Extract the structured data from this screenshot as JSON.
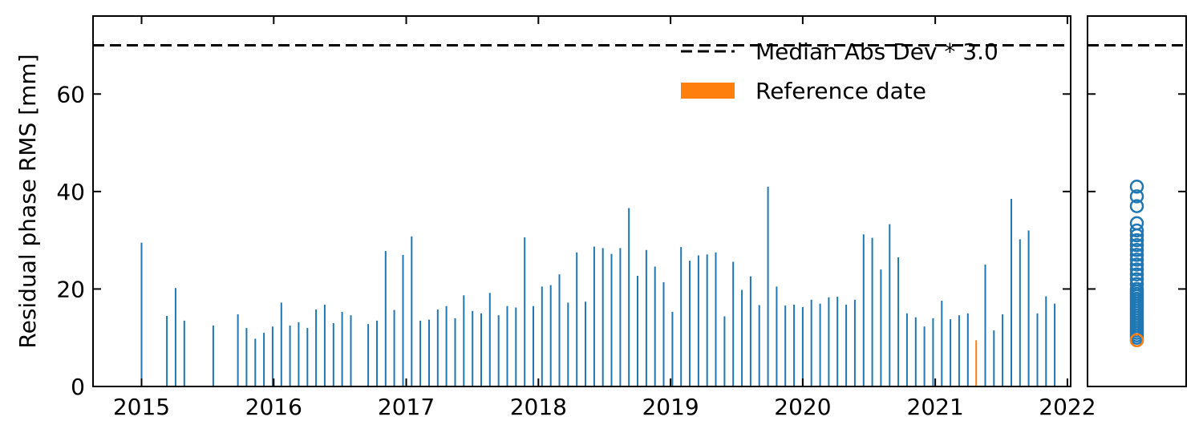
{
  "chart_data": [
    {
      "type": "bar",
      "ylabel": "Residual phase RMS [mm]",
      "xlabel": "",
      "xlim": [
        "2014-08-20",
        "2022-01-10"
      ],
      "ylim": [
        0,
        76
      ],
      "x_ticks": [
        "2015",
        "2016",
        "2017",
        "2018",
        "2019",
        "2020",
        "2021",
        "2022"
      ],
      "y_ticks": [
        "0",
        "20",
        "40",
        "60"
      ],
      "threshold": {
        "label": "Median Abs Dev * 3.0",
        "value": 70,
        "style": "dashed",
        "color": "#000000"
      },
      "legend": {
        "position": "top-right",
        "entries": [
          "Median Abs Dev * 3.0",
          "Reference date"
        ]
      },
      "colors": {
        "bars": "#1f77b4",
        "reference": "#ff7f0e",
        "threshold": "#000000"
      },
      "reference": {
        "label": "Reference date",
        "date": "2021-04-24",
        "value": 9.5
      },
      "series": [
        {
          "x": [
            "2015-01-01",
            "2015-03-12",
            "2015-04-05",
            "2015-04-29",
            "2015-07-18",
            "2015-09-24",
            "2015-10-18",
            "2015-11-11",
            "2015-12-05",
            "2015-12-29",
            "2016-01-22",
            "2016-02-15",
            "2016-03-10",
            "2016-04-03",
            "2016-04-27",
            "2016-05-21",
            "2016-06-14",
            "2016-07-08",
            "2016-08-01",
            "2016-09-18",
            "2016-10-12",
            "2016-11-05",
            "2016-11-29",
            "2016-12-23",
            "2017-01-16",
            "2017-02-09",
            "2017-03-05",
            "2017-03-29",
            "2017-04-22",
            "2017-05-16",
            "2017-06-09",
            "2017-07-03",
            "2017-07-27",
            "2017-08-20",
            "2017-09-13",
            "2017-10-07",
            "2017-10-31",
            "2017-11-24",
            "2017-12-18",
            "2018-01-11",
            "2018-02-04",
            "2018-02-28",
            "2018-03-24",
            "2018-04-17",
            "2018-05-11",
            "2018-06-04",
            "2018-06-28",
            "2018-07-22",
            "2018-08-15",
            "2018-09-08",
            "2018-10-02",
            "2018-10-26",
            "2018-11-19",
            "2018-12-13",
            "2019-01-06",
            "2019-01-30",
            "2019-02-23",
            "2019-03-19",
            "2019-04-12",
            "2019-05-06",
            "2019-05-30",
            "2019-06-23",
            "2019-07-17",
            "2019-08-10",
            "2019-09-03",
            "2019-09-27",
            "2019-10-21",
            "2019-11-14",
            "2019-12-08",
            "2020-01-01",
            "2020-01-25",
            "2020-02-18",
            "2020-03-13",
            "2020-04-06",
            "2020-04-30",
            "2020-05-24",
            "2020-06-17",
            "2020-07-11",
            "2020-08-04",
            "2020-08-28",
            "2020-09-21",
            "2020-10-15",
            "2020-11-08",
            "2020-12-02",
            "2020-12-26",
            "2021-01-19",
            "2021-02-12",
            "2021-03-08",
            "2021-04-01",
            "2021-04-24",
            "2021-05-19",
            "2021-06-12",
            "2021-07-06",
            "2021-07-30",
            "2021-08-23",
            "2021-09-16",
            "2021-10-10",
            "2021-11-03",
            "2021-11-27"
          ],
          "values": [
            29.5,
            14.5,
            20.2,
            13.5,
            12.5,
            14.8,
            12.0,
            9.8,
            11.0,
            12.3,
            17.2,
            12.5,
            13.2,
            12.0,
            15.8,
            16.8,
            13.0,
            15.3,
            14.6,
            12.8,
            13.5,
            27.8,
            15.7,
            27.0,
            30.8,
            13.5,
            13.7,
            15.8,
            16.5,
            14.0,
            18.7,
            15.5,
            15.0,
            19.2,
            14.6,
            16.5,
            16.2,
            30.6,
            16.5,
            20.5,
            20.8,
            23.0,
            17.2,
            27.5,
            17.4,
            28.7,
            28.4,
            27.2,
            28.4,
            36.6,
            22.7,
            28.0,
            24.6,
            21.4,
            15.3,
            28.6,
            25.8,
            26.9,
            27.1,
            27.5,
            14.4,
            25.6,
            19.8,
            22.6,
            16.7,
            41.0,
            20.5,
            16.6,
            16.8,
            16.3,
            17.8,
            17.0,
            18.3,
            18.4,
            16.8,
            17.8,
            31.2,
            30.5,
            24.0,
            33.3,
            26.5,
            15.0,
            14.2,
            12.3,
            14.0,
            17.6,
            13.8,
            14.6,
            15.0,
            9.5,
            25.0,
            11.5,
            14.8,
            38.5,
            30.2,
            32.0,
            15.0,
            18.5,
            17.0
          ]
        }
      ]
    },
    {
      "type": "scatter",
      "ylim": [
        0,
        76
      ],
      "threshold_value": 70,
      "colors": {
        "points": "#1f77b4",
        "reference": "#ff7f0e"
      },
      "values": [
        9.5,
        10.0,
        10.5,
        11.0,
        11.5,
        12.0,
        12.5,
        13.0,
        13.5,
        14.0,
        14.5,
        15.0,
        15.5,
        16.0,
        16.5,
        17.0,
        17.5,
        18.0,
        18.5,
        19.0,
        19.5,
        20.0,
        21.0,
        22.0,
        23.0,
        24.0,
        25.0,
        26.0,
        27.0,
        28.0,
        29.0,
        30.0,
        31.0,
        32.0,
        33.5,
        37.0,
        39.0,
        41.0
      ],
      "reference_value": 9.5
    }
  ]
}
